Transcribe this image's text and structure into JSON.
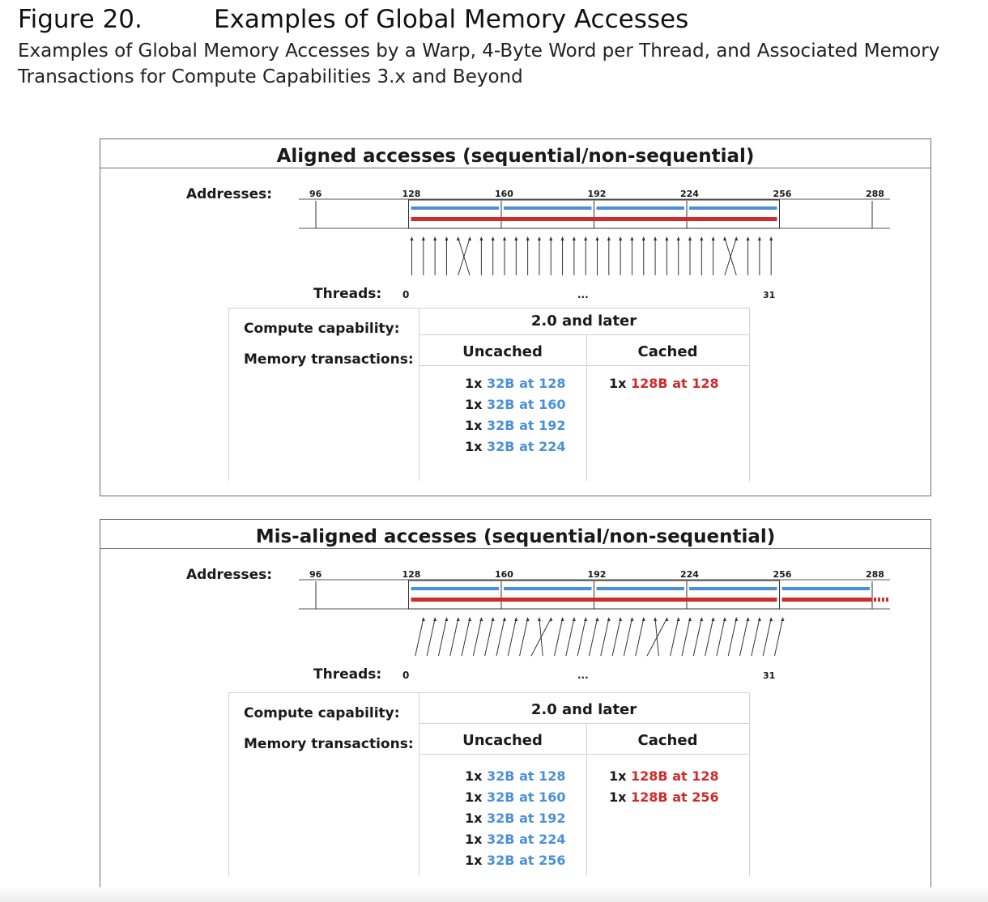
{
  "header": {
    "figure_number": "Figure 20.",
    "title": "Examples of Global Memory Accesses",
    "caption": "Examples of Global Memory Accesses by a Warp, 4-Byte Word per Thread, and Associated Memory Transactions for Compute Capabilities 3.x and Beyond"
  },
  "colors": {
    "blue": "#4a90d9",
    "red": "#d12a2a"
  },
  "panels": [
    {
      "title": "Aligned accesses (sequential/non-sequential)",
      "addresses_label": "Addresses:",
      "address_ticks": [
        "96",
        "128",
        "160",
        "192",
        "224",
        "256",
        "288"
      ],
      "threads_label": "Threads:",
      "thread_first": "0",
      "thread_ellipsis": "...",
      "thread_last": "31",
      "compute_capability_label": "Compute capability:",
      "memory_transactions_label": "Memory transactions:",
      "capability_value": "2.0 and later",
      "uncached_label": "Uncached",
      "cached_label": "Cached",
      "uncached": [
        {
          "count": "1x",
          "text": "32B at 128"
        },
        {
          "count": "1x",
          "text": "32B at 160"
        },
        {
          "count": "1x",
          "text": "32B at 192"
        },
        {
          "count": "1x",
          "text": "32B at 224"
        }
      ],
      "cached": [
        {
          "count": "1x",
          "text": "128B at 128"
        }
      ],
      "blue_segments_start": [
        128,
        160,
        192,
        224
      ],
      "red_segment_start": [
        128
      ],
      "thread_start_address": 128
    },
    {
      "title": "Mis-aligned accesses (sequential/non-sequential)",
      "addresses_label": "Addresses:",
      "address_ticks": [
        "96",
        "128",
        "160",
        "192",
        "224",
        "256",
        "288"
      ],
      "threads_label": "Threads:",
      "thread_first": "0",
      "thread_ellipsis": "...",
      "thread_last": "31",
      "compute_capability_label": "Compute capability:",
      "memory_transactions_label": "Memory transactions:",
      "capability_value": "2.0 and later",
      "uncached_label": "Uncached",
      "cached_label": "Cached",
      "uncached": [
        {
          "count": "1x",
          "text": "32B at 128"
        },
        {
          "count": "1x",
          "text": "32B at 160"
        },
        {
          "count": "1x",
          "text": "32B at 192"
        },
        {
          "count": "1x",
          "text": "32B at 224"
        },
        {
          "count": "1x",
          "text": "32B at 256"
        }
      ],
      "cached": [
        {
          "count": "1x",
          "text": "128B at 128"
        },
        {
          "count": "1x",
          "text": "128B at 256"
        }
      ],
      "blue_segments_start": [
        128,
        160,
        192,
        224,
        256
      ],
      "red_segment_start": [
        128,
        256
      ],
      "thread_start_address": 132
    }
  ]
}
